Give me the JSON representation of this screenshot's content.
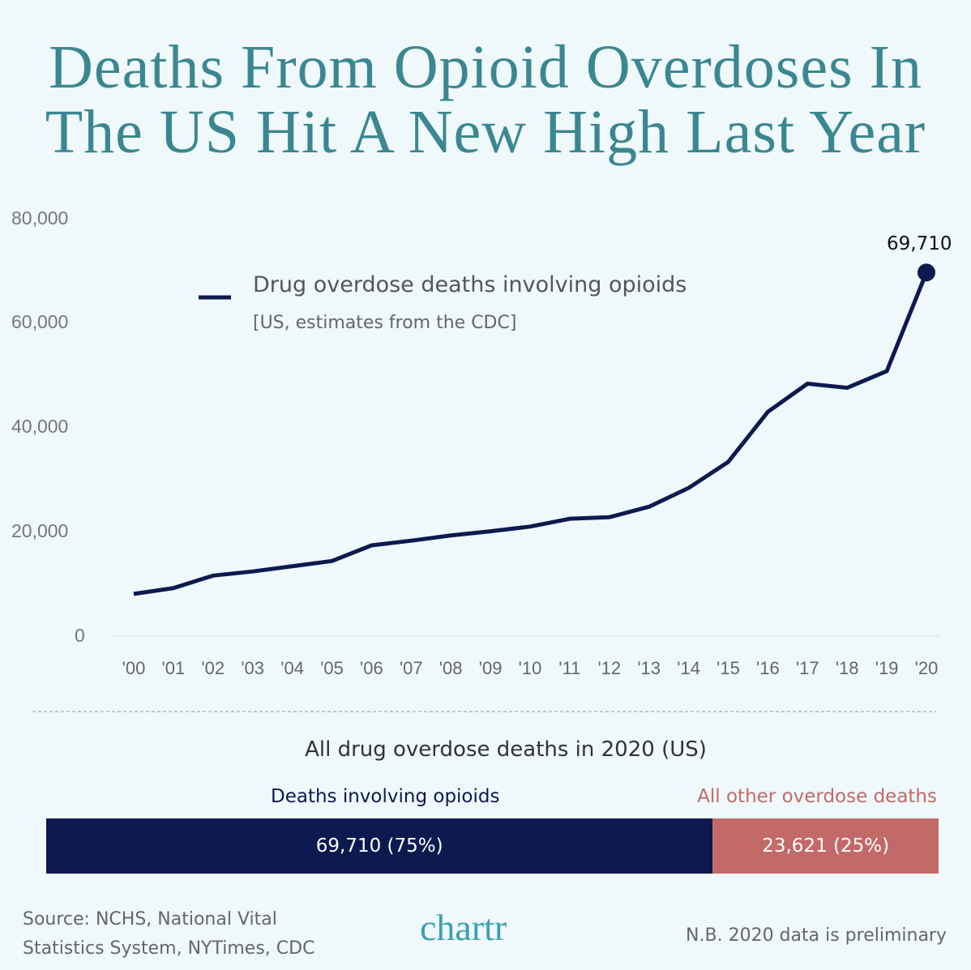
{
  "title_line1": "Deaths From Opioid Overdoses In",
  "title_line2": "The US Hit A New High Last Year",
  "chart_data": {
    "type": "line",
    "title": "Deaths From Opioid Overdoses In The US Hit A New High Last Year",
    "categories": [
      "'00",
      "'01",
      "'02",
      "'03",
      "'04",
      "'05",
      "'06",
      "'07",
      "'08",
      "'09",
      "'10",
      "'11",
      "'12",
      "'13",
      "'14",
      "'15",
      "'16",
      "'17",
      "'18",
      "'19",
      "'20"
    ],
    "series": [
      {
        "name": "Drug overdose deaths involving opioids",
        "values": [
          8100,
          9200,
          11600,
          12400,
          13400,
          14400,
          17400,
          18300,
          19300,
          20100,
          21000,
          22500,
          22800,
          24800,
          28400,
          33400,
          43000,
          48400,
          47600,
          50800,
          69710
        ]
      }
    ],
    "legend_sub": "[US, estimates from the CDC]",
    "y_ticks": [
      "0",
      "20,000",
      "40,000",
      "60,000",
      "80,000"
    ],
    "ylim": [
      0,
      80000
    ],
    "end_label": "69,710",
    "line_color": "#0d1a4f",
    "grid": false,
    "legend_position": "top-left"
  },
  "breakdown": {
    "title": "All drug overdose deaths in 2020 (US)",
    "segments": [
      {
        "label": "Deaths involving opioids",
        "value": 69710,
        "text": "69,710 (75%)",
        "color": "#0d1a4f"
      },
      {
        "label": "All other overdose deaths",
        "value": 23621,
        "text": "23,621 (25%)",
        "color": "#c26a68"
      }
    ]
  },
  "footer": {
    "source_line1": "Source: NCHS, National Vital",
    "source_line2": "Statistics System, NYTimes, CDC",
    "logo": "chartr",
    "note": "N.B. 2020 data is preliminary"
  }
}
